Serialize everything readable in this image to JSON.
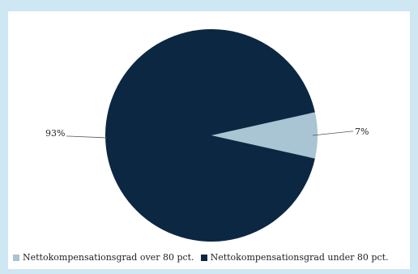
{
  "chart_data": {
    "type": "pie",
    "title": "",
    "series": [
      {
        "name": "Nettokompensationsgrad over 80 pct.",
        "value": 7,
        "label": "7%",
        "color": "#a9c4d2"
      },
      {
        "name": "Nettokompensationsgrad under 80 pct.",
        "value": 93,
        "label": "93%",
        "color": "#0b2742"
      }
    ],
    "legend_position": "bottom-left"
  }
}
